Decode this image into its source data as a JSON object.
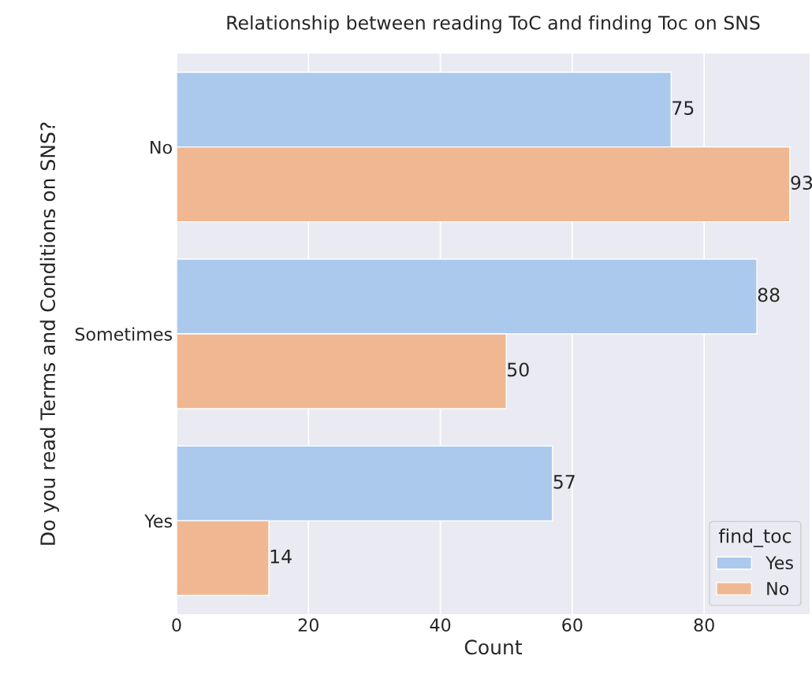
{
  "chart_data": {
    "type": "bar",
    "orientation": "horizontal",
    "title": "Relationship between reading ToC and finding Toc on SNS",
    "xlabel": "Count",
    "ylabel": "Do you read Terms and Conditions on SNS?",
    "categories": [
      "No",
      "Sometimes",
      "Yes"
    ],
    "series": [
      {
        "name": "Yes",
        "color": "#abc9ed",
        "values": [
          75,
          88,
          57
        ]
      },
      {
        "name": "No",
        "color": "#f0b892",
        "values": [
          93,
          50,
          14
        ]
      }
    ],
    "legend_title": "find_toc",
    "legend": "bottom right",
    "xlim": [
      0,
      96
    ],
    "xticks": [
      0,
      20,
      40,
      60,
      80
    ],
    "grid": "x",
    "data_labels": true
  }
}
